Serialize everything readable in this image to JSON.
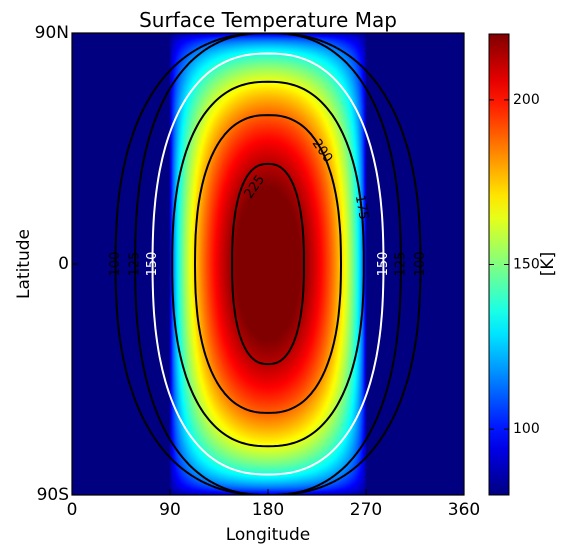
{
  "chart_data": {
    "type": "heatmap",
    "title": "Surface Temperature Map",
    "xlabel": "Longitude",
    "ylabel": "Latitude",
    "colorbar_label": "[K]",
    "xlim": [
      0,
      360
    ],
    "ylim": [
      -90,
      90
    ],
    "x_ticks": [
      {
        "value": 0,
        "label": "0"
      },
      {
        "value": 90,
        "label": "90"
      },
      {
        "value": 180,
        "label": "180"
      },
      {
        "value": 270,
        "label": "270"
      },
      {
        "value": 360,
        "label": "360"
      }
    ],
    "y_ticks": [
      {
        "value": 90,
        "label": "90N"
      },
      {
        "value": 0,
        "label": "0"
      },
      {
        "value": -90,
        "label": "90S"
      }
    ],
    "colorbar_range": [
      80,
      220
    ],
    "colorbar_ticks": [
      {
        "value": 100,
        "label": "100"
      },
      {
        "value": 150,
        "label": "150"
      },
      {
        "value": 200,
        "label": "200"
      }
    ],
    "colormap": "jet",
    "hotspot": {
      "lon": 180,
      "lat": 0,
      "max_temp": 230,
      "min_temp": 80
    },
    "contour_levels": [
      100,
      125,
      150,
      175,
      200,
      225
    ],
    "contours": [
      {
        "level": 100,
        "label": "100",
        "color": "#000000",
        "half_width_lon": 140,
        "lat_extent": 90
      },
      {
        "level": 125,
        "label": "125",
        "color": "#000000",
        "half_width_lon": 122,
        "lat_extent": 90
      },
      {
        "level": 150,
        "label": "150",
        "color": "#ffffff",
        "half_width_lon": 106,
        "lat_extent": 82
      },
      {
        "level": 175,
        "label": "175",
        "color": "#000000",
        "half_width_lon": 88,
        "lat_extent": 71
      },
      {
        "level": 200,
        "label": "200",
        "color": "#000000",
        "half_width_lon": 67,
        "lat_extent": 58
      },
      {
        "level": 225,
        "label": "225",
        "color": "#000000",
        "half_width_lon": 33,
        "lat_extent": 39
      }
    ]
  }
}
